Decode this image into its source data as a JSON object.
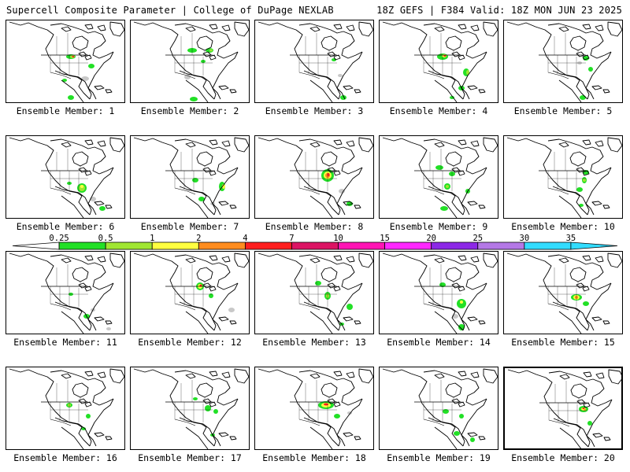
{
  "header": {
    "title_left": "Supercell Composite Parameter | College of DuPage NEXLAB",
    "title_right": "18Z GEFS | F384 Valid: 18Z MON JUN 23 2025"
  },
  "legend": {
    "labels": [
      "0.25",
      "0.5",
      "1",
      "2",
      "4",
      "7",
      "10",
      "15",
      "20",
      "25",
      "30",
      "35"
    ],
    "colors": [
      "#ffffff",
      "#22e026",
      "#a0e632",
      "#ffff40",
      "#ff8c1e",
      "#ff1e1e",
      "#dc1464",
      "#ff14b4",
      "#ff28ff",
      "#8c28e6",
      "#b478e6",
      "#32dcff"
    ],
    "left_arrow_color": "#ffffff",
    "right_arrow_color": "#32dcff",
    "fill_colors": {
      "gray": "#c8c8c8",
      "green": "#22e026",
      "lime": "#a0e632",
      "yellow": "#ffff40",
      "orange": "#ff8c1e",
      "red": "#ff1e1e"
    }
  },
  "members": [
    {
      "label": "Ensemble Member: 1"
    },
    {
      "label": "Ensemble Member: 2"
    },
    {
      "label": "Ensemble Member: 3"
    },
    {
      "label": "Ensemble Member: 4"
    },
    {
      "label": "Ensemble Member: 5"
    },
    {
      "label": "Ensemble Member: 6"
    },
    {
      "label": "Ensemble Member: 7"
    },
    {
      "label": "Ensemble Member: 8"
    },
    {
      "label": "Ensemble Member: 9"
    },
    {
      "label": "Ensemble Member: 10"
    },
    {
      "label": "Ensemble Member: 11"
    },
    {
      "label": "Ensemble Member: 12"
    },
    {
      "label": "Ensemble Member: 13"
    },
    {
      "label": "Ensemble Member: 14"
    },
    {
      "label": "Ensemble Member: 15"
    },
    {
      "label": "Ensemble Member: 16"
    },
    {
      "label": "Ensemble Member: 17"
    },
    {
      "label": "Ensemble Member: 18"
    },
    {
      "label": "Ensemble Member: 19"
    },
    {
      "label": "Ensemble Member: 20"
    }
  ]
}
